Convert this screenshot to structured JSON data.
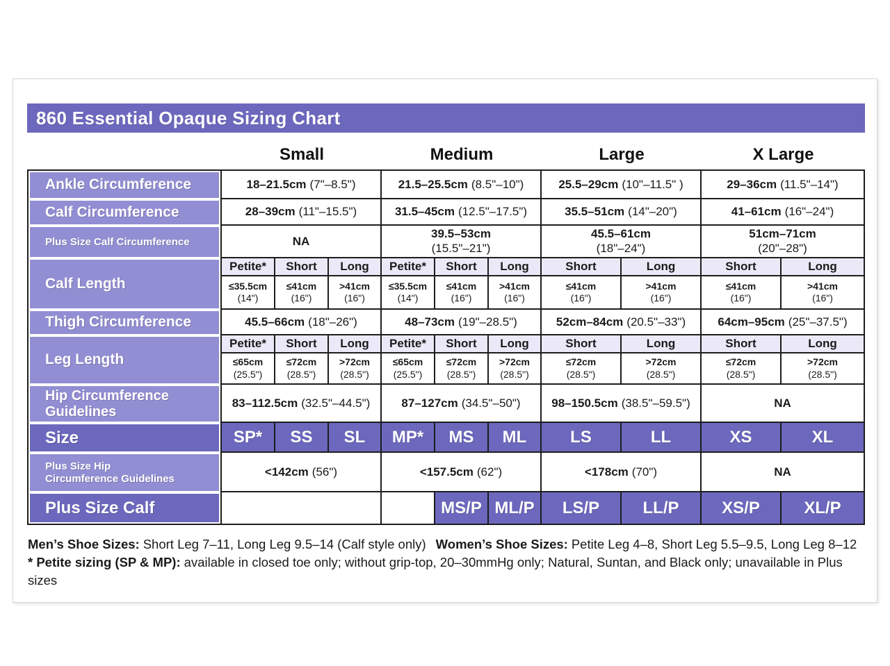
{
  "title": "860 Essential Opaque Sizing Chart",
  "colors": {
    "purple_dark": "#6c68be",
    "purple_light": "#928ed3",
    "lavender": "#ebe9f7",
    "border": "#1d1d1d"
  },
  "columns": {
    "small": "Small",
    "medium": "Medium",
    "large": "Large",
    "xlarge": "X Large"
  },
  "rows": {
    "ankle": {
      "label": "Ankle Circumference",
      "values": [
        {
          "cm": "18–21.5cm",
          "in": "(7\"–8.5\")"
        },
        {
          "cm": "21.5–25.5cm",
          "in": "(8.5\"–10\")"
        },
        {
          "cm": "25.5–29cm",
          "in": "(10\"–11.5\" )"
        },
        {
          "cm": "29–36cm",
          "in": "(11.5\"–14\")"
        }
      ]
    },
    "calf": {
      "label": "Calf Circumference",
      "values": [
        {
          "cm": "28–39cm",
          "in": "(11\"–15.5\")"
        },
        {
          "cm": "31.5–45cm",
          "in": "(12.5\"–17.5\")"
        },
        {
          "cm": "35.5–51cm",
          "in": "(14\"–20\")"
        },
        {
          "cm": "41–61cm",
          "in": "(16\"–24\")"
        }
      ]
    },
    "plus_calf": {
      "label": "Plus Size Calf Circumference",
      "values": [
        {
          "cm": "NA",
          "in": ""
        },
        {
          "cm": "39.5–53cm",
          "in": "(15.5\"–21\")"
        },
        {
          "cm": "45.5–61cm",
          "in": "(18\"–24\")"
        },
        {
          "cm": "51cm–71cm",
          "in": "(20\"–28\")"
        }
      ]
    },
    "calf_length": {
      "label": "Calf Length",
      "subheads": [
        "Petite*",
        "Short",
        "Long",
        "Petite*",
        "Short",
        "Long",
        "Short",
        "Long",
        "Short",
        "Long"
      ],
      "values": [
        {
          "cm": "≤35.5cm",
          "in": "(14\")"
        },
        {
          "cm": "≤41cm",
          "in": "(16\")"
        },
        {
          "cm": ">41cm",
          "in": "(16\")"
        },
        {
          "cm": "≤35.5cm",
          "in": "(14\")"
        },
        {
          "cm": "≤41cm",
          "in": "(16\")"
        },
        {
          "cm": ">41cm",
          "in": "(16\")"
        },
        {
          "cm": "≤41cm",
          "in": "(16\")"
        },
        {
          "cm": ">41cm",
          "in": "(16\")"
        },
        {
          "cm": "≤41cm",
          "in": "(16\")"
        },
        {
          "cm": ">41cm",
          "in": "(16\")"
        }
      ]
    },
    "thigh": {
      "label": "Thigh Circumference",
      "values": [
        {
          "cm": "45.5–66cm",
          "in": "(18\"–26\")"
        },
        {
          "cm": "48–73cm",
          "in": "(19\"–28.5\")"
        },
        {
          "cm": "52cm–84cm",
          "in": "(20.5\"–33\")"
        },
        {
          "cm": "64cm–95cm",
          "in": "(25\"–37.5\")"
        }
      ]
    },
    "leg_length": {
      "label": "Leg Length",
      "subheads": [
        "Petite*",
        "Short",
        "Long",
        "Petite*",
        "Short",
        "Long",
        "Short",
        "Long",
        "Short",
        "Long"
      ],
      "values": [
        {
          "cm": "≤65cm",
          "in": "(25.5\")"
        },
        {
          "cm": "≤72cm",
          "in": "(28.5\")"
        },
        {
          "cm": ">72cm",
          "in": "(28.5\")"
        },
        {
          "cm": "≤65cm",
          "in": "(25.5\")"
        },
        {
          "cm": "≤72cm",
          "in": "(28.5\")"
        },
        {
          "cm": ">72cm",
          "in": "(28.5\")"
        },
        {
          "cm": "≤72cm",
          "in": "(28.5\")"
        },
        {
          "cm": ">72cm",
          "in": "(28.5\")"
        },
        {
          "cm": "≤72cm",
          "in": "(28.5\")"
        },
        {
          "cm": ">72cm",
          "in": "(28.5\")"
        }
      ]
    },
    "hip": {
      "label1": "Hip Circumference",
      "label2": "Guidelines",
      "values": [
        {
          "cm": "83–112.5cm",
          "in": "(32.5\"–44.5\")"
        },
        {
          "cm": "87–127cm",
          "in": "(34.5\"–50\")"
        },
        {
          "cm": "98–150.5cm",
          "in": "(38.5\"–59.5\")"
        },
        {
          "cm": "NA",
          "in": ""
        }
      ]
    },
    "size": {
      "label": "Size",
      "values": [
        "SP*",
        "SS",
        "SL",
        "MP*",
        "MS",
        "ML",
        "LS",
        "LL",
        "XS",
        "XL"
      ]
    },
    "plus_hip": {
      "label1": "Plus Size Hip",
      "label2": "Circumference Guidelines",
      "values": [
        {
          "cm": "<142cm",
          "in": "(56\")"
        },
        {
          "cm": "<157.5cm",
          "in": "(62\")"
        },
        {
          "cm": "<178cm",
          "in": "(70\")"
        },
        {
          "cm": "NA",
          "in": ""
        }
      ]
    },
    "plus_size_calf": {
      "label": "Plus Size Calf",
      "values": [
        "MS/P",
        "ML/P",
        "LS/P",
        "LL/P",
        "XS/P",
        "XL/P"
      ]
    }
  },
  "footnotes": {
    "mens_label": "Men’s Shoe Sizes:",
    "mens_text": "Short Leg 7–11, Long Leg 9.5–14 (Calf style only)",
    "womens_label": "Women’s Shoe Sizes:",
    "womens_text": "Petite Leg 4–8,  Short Leg 5.5–9.5, Long Leg 8–12",
    "petite_label": "* Petite sizing (SP & MP):",
    "petite_text": "available in closed toe only; without grip-top, 20–30mmHg only; Natural, Suntan, and Black only; unavailable in Plus sizes"
  }
}
